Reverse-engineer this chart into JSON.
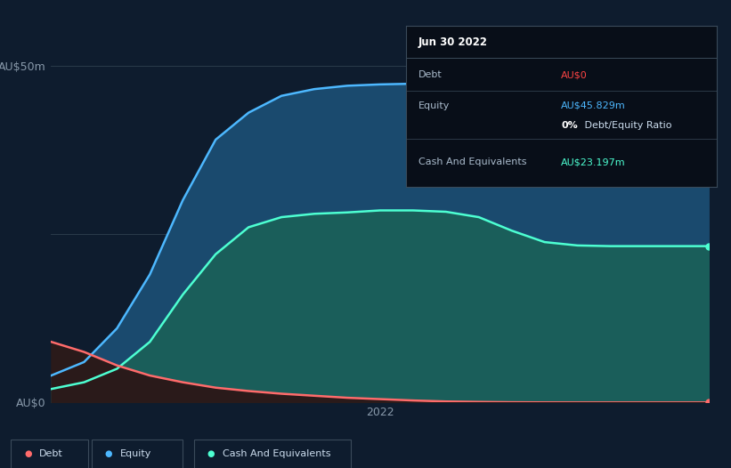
{
  "bg_color": "#0e1c2e",
  "plot_bg_color": "#0e1c2e",
  "tooltip": {
    "title": "Jun 30 2022",
    "debt_label": "Debt",
    "debt_value": "AU$0",
    "equity_label": "Equity",
    "equity_value": "AU$45.829m",
    "ratio_value": "0% Debt/Equity Ratio",
    "cash_label": "Cash And Equivalents",
    "cash_value": "AU$23.197m"
  },
  "y_label_top": "AU$50m",
  "y_label_bottom": "AU$0",
  "x_label": "2022",
  "debt_color": "#ff6b6b",
  "equity_color": "#4db8ff",
  "cash_color": "#4dffd2",
  "equity_fill_color": "#1a4a6e",
  "cash_fill_color": "#1a5e5a",
  "debt_fill_color": "#2a1a1a",
  "legend_items": [
    {
      "label": "Debt",
      "color": "#ff6b6b"
    },
    {
      "label": "Equity",
      "color": "#4db8ff"
    },
    {
      "label": "Cash And Equivalents",
      "color": "#4dffd2"
    }
  ],
  "grid_color": "#2a3a4a",
  "x_points": [
    0,
    0.05,
    0.1,
    0.15,
    0.2,
    0.25,
    0.3,
    0.35,
    0.4,
    0.45,
    0.5,
    0.55,
    0.6,
    0.65,
    0.7,
    0.75,
    0.8,
    0.85,
    0.9,
    0.95,
    1.0
  ],
  "equity_y": [
    4,
    6,
    11,
    19,
    30,
    39,
    43,
    45.5,
    46.5,
    47,
    47.2,
    47.3,
    47.3,
    47.2,
    47.0,
    46.8,
    46.5,
    46.2,
    46.0,
    45.9,
    45.8
  ],
  "cash_y": [
    2,
    3,
    5,
    9,
    16,
    22,
    26,
    27.5,
    28,
    28.2,
    28.5,
    28.5,
    28.3,
    27.5,
    25.5,
    23.8,
    23.3,
    23.2,
    23.2,
    23.2,
    23.2
  ],
  "debt_y": [
    9,
    7.5,
    5.5,
    4,
    3,
    2.2,
    1.7,
    1.3,
    1.0,
    0.7,
    0.5,
    0.3,
    0.15,
    0.08,
    0.03,
    0.01,
    0,
    0,
    0,
    0,
    0
  ],
  "ylim": [
    0,
    50
  ],
  "ytick_vals": [
    0,
    25,
    50
  ]
}
